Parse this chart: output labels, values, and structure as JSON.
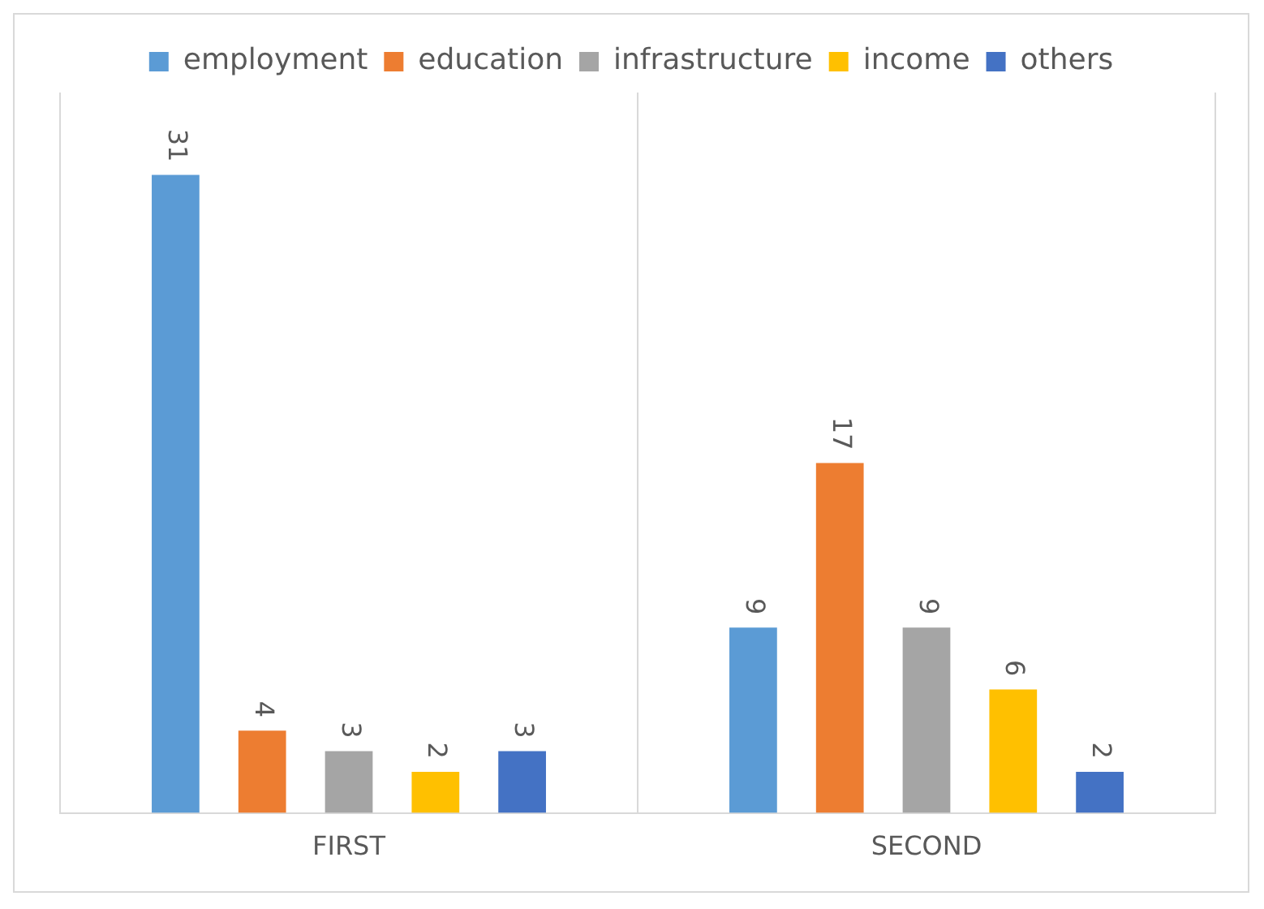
{
  "chart_data": {
    "type": "bar",
    "categories": [
      "FIRST",
      "SECOND"
    ],
    "series": [
      {
        "name": "employment",
        "color": "#5b9bd5",
        "values": [
          31,
          9
        ]
      },
      {
        "name": "education",
        "color": "#ed7d31",
        "values": [
          4,
          17
        ]
      },
      {
        "name": "infrastructure",
        "color": "#a5a5a5",
        "values": [
          3,
          9
        ]
      },
      {
        "name": "income",
        "color": "#ffc000",
        "values": [
          2,
          6
        ]
      },
      {
        "name": "others",
        "color": "#4472c4",
        "values": [
          3,
          2
        ]
      }
    ],
    "relative": false,
    "data_labels": true,
    "legend": "top",
    "grid": "x"
  }
}
